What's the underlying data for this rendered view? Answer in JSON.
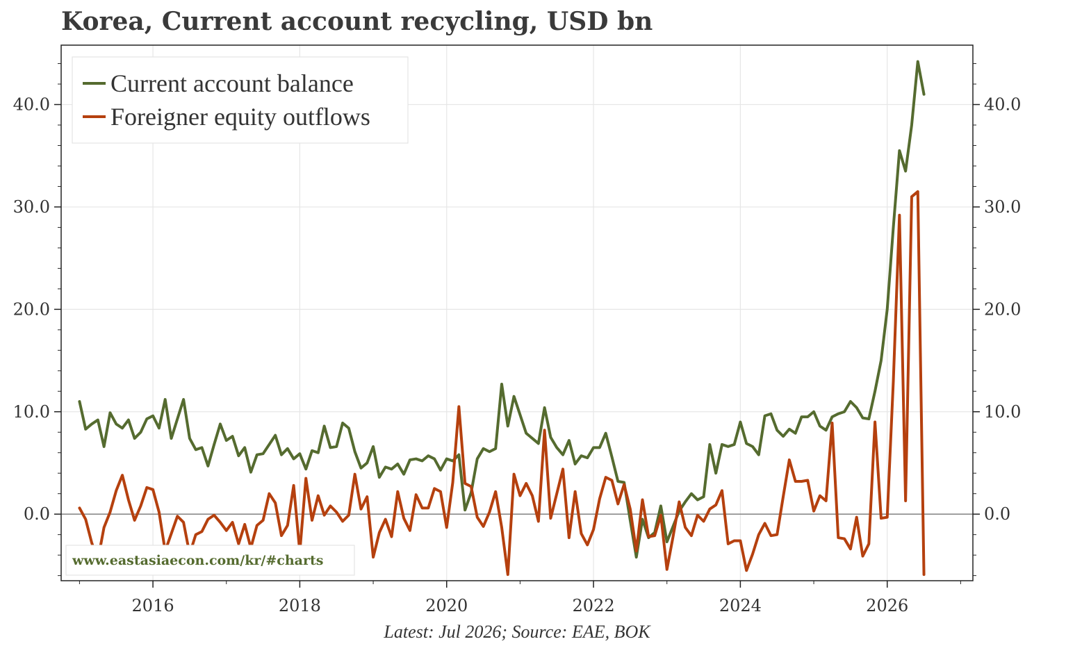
{
  "title": "Korea, Current account recycling, USD bn",
  "footer": "Latest: Jul 2026; Source: EAE, BOK",
  "watermark": "www.eastasiaecon.com/kr/#charts",
  "colors": {
    "current_account": "#556b2f",
    "equity_outflows": "#b5400e",
    "watermark": "#556b2f",
    "grid": "#e6e6e6",
    "zero_line": "#8a8a8a"
  },
  "chart_data": {
    "type": "line",
    "title": "Korea, Current account recycling, USD bn",
    "xlabel": "",
    "ylabel": "",
    "x_start": "2015-01",
    "x_end": "2026-07",
    "x_frequency": "monthly",
    "xlim": [
      "2014-10",
      "2027-03"
    ],
    "ylim": [
      -6.5,
      45.8
    ],
    "x_ticks": [
      "2016",
      "2018",
      "2020",
      "2022",
      "2024",
      "2026"
    ],
    "y_ticks": [
      "0.0",
      "10.0",
      "20.0",
      "30.0",
      "40.0"
    ],
    "grid": true,
    "legend_position": "top-left",
    "secondary_axis": "right (same scale)",
    "series": [
      {
        "name": "Current account balance",
        "color": "#556b2f",
        "values": [
          11.0,
          8.3,
          8.8,
          9.2,
          6.6,
          9.9,
          8.8,
          8.4,
          9.2,
          7.4,
          8.0,
          9.3,
          9.6,
          8.4,
          11.2,
          7.4,
          9.3,
          11.2,
          7.4,
          6.3,
          6.5,
          4.7,
          6.8,
          8.8,
          7.2,
          7.6,
          5.7,
          6.5,
          4.1,
          5.8,
          5.9,
          6.8,
          7.7,
          5.8,
          6.4,
          5.4,
          5.9,
          4.4,
          6.2,
          6.0,
          8.6,
          6.5,
          6.6,
          8.9,
          8.4,
          6.1,
          4.5,
          5.0,
          6.6,
          3.6,
          4.6,
          4.4,
          4.9,
          3.9,
          5.3,
          5.4,
          5.2,
          5.7,
          5.4,
          4.3,
          5.4,
          5.2,
          5.8,
          0.4,
          2.1,
          5.4,
          6.4,
          6.1,
          6.4,
          12.7,
          8.6,
          11.5,
          9.7,
          7.9,
          7.4,
          6.9,
          10.4,
          7.5,
          6.5,
          5.8,
          7.2,
          4.9,
          5.7,
          5.5,
          6.5,
          6.5,
          7.9,
          5.6,
          3.2,
          3.1,
          -0.6,
          -4.2,
          -0.5,
          -2.3,
          -1.8,
          0.8,
          -2.7,
          -1.2,
          0.3,
          1.2,
          2.0,
          1.4,
          1.7,
          6.8,
          4.0,
          6.8,
          6.6,
          6.8,
          9.0,
          6.9,
          6.6,
          5.8,
          9.6,
          9.8,
          8.2,
          7.6,
          8.3,
          7.9,
          9.5,
          9.5,
          10.0,
          8.6,
          8.2,
          9.5,
          9.8,
          10.0,
          11.0,
          10.4,
          9.4,
          9.3,
          12.0,
          15.0,
          20.0,
          28.0,
          35.5,
          33.5,
          38.0,
          44.2,
          41.0
        ]
      },
      {
        "name": "Foreigner equity outflows",
        "color": "#b5400e",
        "values": [
          0.6,
          -0.5,
          -2.8,
          -4.5,
          -1.3,
          0.2,
          2.3,
          3.8,
          1.4,
          -0.6,
          0.8,
          2.6,
          2.4,
          0.2,
          -3.6,
          -1.9,
          -0.2,
          -0.8,
          -3.9,
          -2.0,
          -1.7,
          -0.5,
          -0.1,
          -0.8,
          -1.6,
          -0.8,
          -2.9,
          -1.0,
          -3.3,
          -1.1,
          -0.6,
          2.0,
          1.1,
          -2.1,
          -1.1,
          2.8,
          -3.7,
          3.5,
          -0.6,
          1.8,
          -0.1,
          0.8,
          0.2,
          -0.7,
          -0.1,
          3.9,
          0.5,
          1.7,
          -4.2,
          -1.8,
          -0.5,
          -2.2,
          2.2,
          -0.4,
          -1.6,
          1.9,
          0.6,
          0.6,
          2.5,
          2.2,
          -1.3,
          3.1,
          10.5,
          3.0,
          2.7,
          -0.3,
          -1.2,
          0.2,
          2.2,
          -1.3,
          -5.9,
          3.9,
          1.8,
          3.0,
          1.8,
          -0.7,
          8.2,
          -0.4,
          2.0,
          4.4,
          -2.3,
          2.2,
          -1.9,
          -3.0,
          -1.5,
          1.5,
          3.6,
          3.3,
          1.0,
          2.9,
          0.5,
          -3.6,
          1.4,
          -2.2,
          -2.1,
          -0.1,
          -5.4,
          -2.2,
          1.2,
          -1.3,
          -2.1,
          -0.1,
          -0.7,
          0.5,
          0.9,
          2.3,
          -2.9,
          -2.6,
          -2.6,
          -5.5,
          -3.9,
          -2.0,
          -0.9,
          -2.1,
          -2.0,
          1.7,
          5.3,
          3.2,
          3.2,
          3.3,
          0.3,
          1.8,
          1.3,
          8.9,
          -2.3,
          -2.4,
          -3.4,
          -0.3,
          -4.1,
          -2.9,
          9.0,
          -0.4,
          -0.3,
          13.0,
          29.2,
          1.3,
          31.0,
          31.5,
          -5.9
        ]
      }
    ]
  }
}
